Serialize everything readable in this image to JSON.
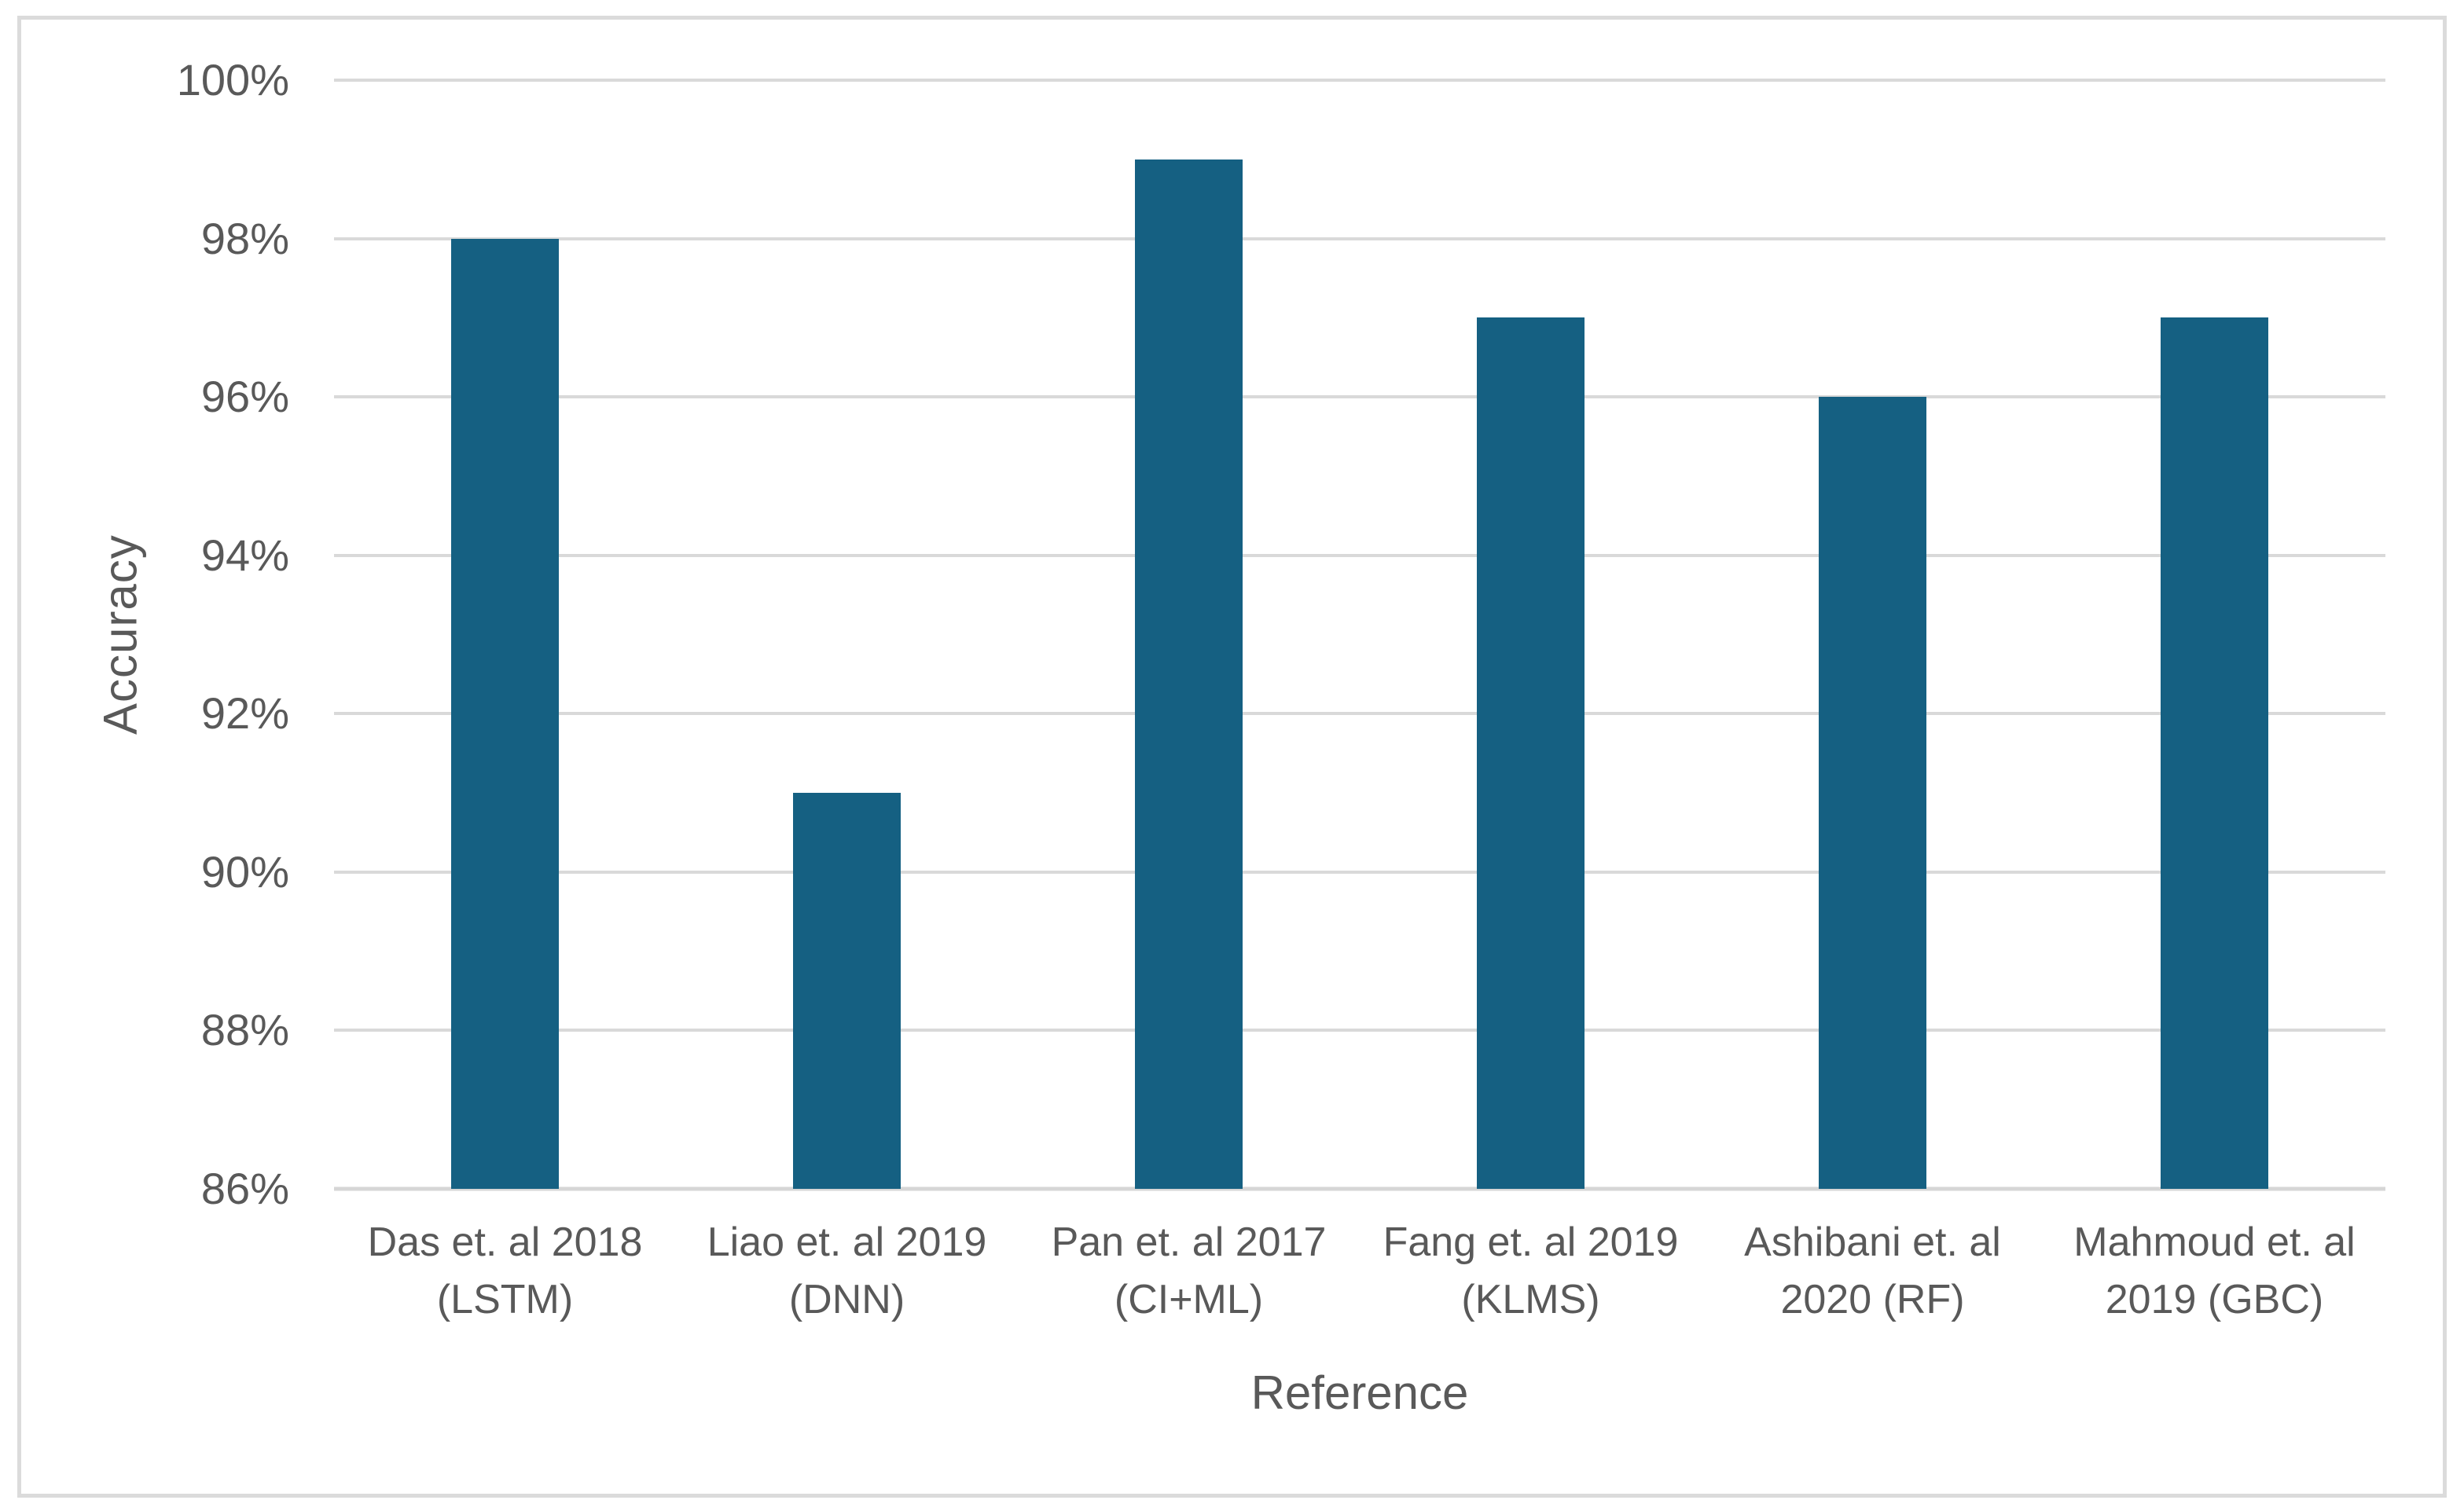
{
  "figure": {
    "background": "#FFFFFF",
    "border_color": "#DBDBDB"
  },
  "chart_data": {
    "type": "bar",
    "title": "",
    "categories": [
      "Das et. al 2018 (LSTM)",
      "Liao et. al 2019 (DNN)",
      "Pan et. al 2017 (CI+ML)",
      "Fang et. al 2019 (KLMS)",
      "Ashibani et. al 2020 (RF)",
      "Mahmoud et. al 2019 (GBC)"
    ],
    "values": [
      98,
      91,
      99,
      97,
      96,
      97
    ],
    "unit": "%",
    "xlabel": "Reference",
    "ylabel": "Accuracy",
    "ylim": [
      86,
      100
    ],
    "ytick_step": 2,
    "ytick_labels": [
      "86%",
      "88%",
      "90%",
      "92%",
      "94%",
      "96%",
      "98%",
      "100%"
    ],
    "grid": "horizontal",
    "legend": "none",
    "colors": {
      "bar": "#156082",
      "gridline": "#D9D9D9",
      "axis_line": "#D6D6D6",
      "text": "#595959"
    }
  }
}
